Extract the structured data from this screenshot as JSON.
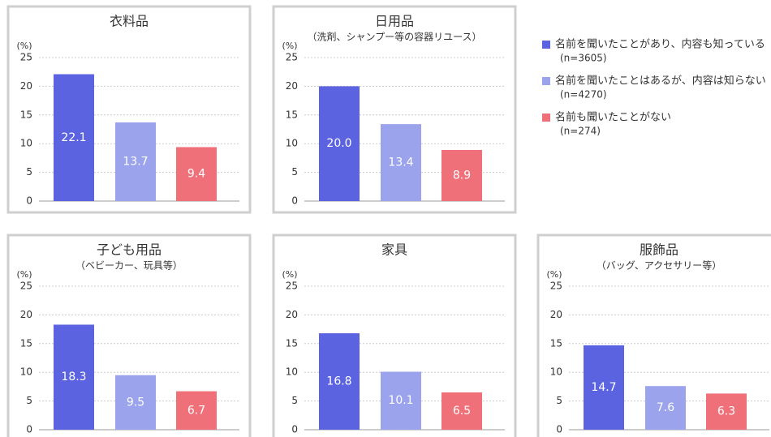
{
  "chart_data": [
    {
      "type": "bar",
      "title": "衣料品",
      "y_label": "(%)",
      "ylim": [
        0,
        25
      ],
      "yticks": [
        0,
        5,
        10,
        15,
        20,
        25
      ],
      "grid": true,
      "values": [
        22.1,
        13.7,
        9.4
      ],
      "value_labels": [
        "22.1",
        "13.7",
        "9.4"
      ],
      "colors": [
        "#5b63e0",
        "#9aa3ec",
        "#f0707a"
      ]
    },
    {
      "type": "bar",
      "title": "日用品",
      "subtitle": "（洗剤、シャンプー等の容器リユース）",
      "y_label": "(%)",
      "ylim": [
        0,
        25
      ],
      "yticks": [
        0,
        5,
        10,
        15,
        20,
        25
      ],
      "grid": true,
      "values": [
        20.0,
        13.4,
        8.9
      ],
      "value_labels": [
        "20.0",
        "13.4",
        "8.9"
      ],
      "colors": [
        "#5b63e0",
        "#9aa3ec",
        "#f0707a"
      ]
    },
    {
      "type": "bar",
      "title": "子ども用品",
      "subtitle": "（ベビーカー、玩具等）",
      "y_label": "(%)",
      "ylim": [
        0,
        25
      ],
      "yticks": [
        0,
        5,
        10,
        15,
        20,
        25
      ],
      "grid": true,
      "values": [
        18.3,
        9.5,
        6.7
      ],
      "value_labels": [
        "18.3",
        "9.5",
        "6.7"
      ],
      "colors": [
        "#5b63e0",
        "#9aa3ec",
        "#f0707a"
      ]
    },
    {
      "type": "bar",
      "title": "家具",
      "y_label": "(%)",
      "ylim": [
        0,
        25
      ],
      "yticks": [
        0,
        5,
        10,
        15,
        20,
        25
      ],
      "grid": true,
      "values": [
        16.8,
        10.1,
        6.5
      ],
      "value_labels": [
        "16.8",
        "10.1",
        "6.5"
      ],
      "colors": [
        "#5b63e0",
        "#9aa3ec",
        "#f0707a"
      ]
    },
    {
      "type": "bar",
      "title": "服飾品",
      "subtitle": "（バッグ、アクセサリー等）",
      "y_label": "(%)",
      "ylim": [
        0,
        25
      ],
      "yticks": [
        0,
        5,
        10,
        15,
        20,
        25
      ],
      "grid": true,
      "values": [
        14.7,
        7.6,
        6.3
      ],
      "value_labels": [
        "14.7",
        "7.6",
        "6.3"
      ],
      "colors": [
        "#5b63e0",
        "#9aa3ec",
        "#f0707a"
      ]
    }
  ],
  "legend": {
    "items": [
      {
        "name": "名前を聞いたことがあり、内容も知っている",
        "n": "(n=3605)",
        "color": "#5b63e0"
      },
      {
        "name": "名前を聞いたことはあるが、内容は知らない",
        "n": "(n=4270)",
        "color": "#9aa3ec"
      },
      {
        "name": "名前も聞いたことがない",
        "n": "(n=274)",
        "color": "#f0707a"
      }
    ]
  }
}
